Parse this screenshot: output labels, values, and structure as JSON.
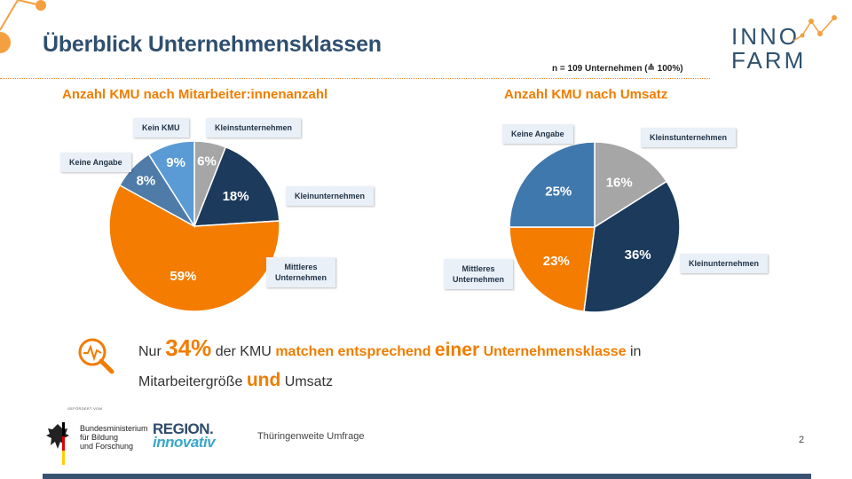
{
  "slide": {
    "title": "Überblick Unternehmensklassen",
    "sample_note": "n = 109 Unternehmen (≙ 100%)",
    "logo_line1": "INNO",
    "logo_line2": "FARM",
    "footer_survey": "Thüringenweite Umfrage",
    "page_number": "2",
    "funder_label": "GEFÖRDERT VOM",
    "funder_name_lines": [
      "Bundesministerium",
      "für Bildung",
      "und Forschung"
    ],
    "region_logo_line1": "REGION.",
    "region_logo_line2": "innovativ",
    "finding": {
      "w1": "Nur",
      "w2": "34%",
      "w3": "der KMU",
      "w4": "matchen entsprechend",
      "w5": "einer",
      "w6": "Unternehmensklasse",
      "w7": "in",
      "w8": "Mitarbeitergröße",
      "w9": "und",
      "w10": "Umsatz"
    }
  },
  "chart_data": [
    {
      "type": "pie",
      "title": "Anzahl KMU nach Mitarbeiter:innenanzahl",
      "slices": [
        {
          "label": "Kleinstunternehmen",
          "value": 6,
          "display": "6%",
          "color": "#a6a6a6"
        },
        {
          "label": "Kleinunternehmen",
          "value": 18,
          "display": "18%",
          "color": "#1b3a5c"
        },
        {
          "label": "Mittleres Unternehmen",
          "value": 59,
          "display": "59%",
          "color": "#f47c00"
        },
        {
          "label": "Keine Angabe",
          "value": 8,
          "display": "8%",
          "color": "#4f7ba8"
        },
        {
          "label": "Kein KMU",
          "value": 9,
          "display": "9%",
          "color": "#5b9bd5"
        }
      ]
    },
    {
      "type": "pie",
      "title": "Anzahl KMU nach Umsatz",
      "slices": [
        {
          "label": "Kleinstunternehmen",
          "value": 16,
          "display": "16%",
          "color": "#a6a6a6"
        },
        {
          "label": "Kleinunternehmen",
          "value": 36,
          "display": "36%",
          "color": "#1b3a5c"
        },
        {
          "label": "Mittleres Unternehmen",
          "value": 23,
          "display": "23%",
          "color": "#f47c00"
        },
        {
          "label": "Keine Angabe",
          "value": 25,
          "display": "25%",
          "color": "#3f78ad"
        }
      ]
    }
  ],
  "callouts": {
    "c1_kein_kmu": "Kein KMU",
    "c1_kleinst": "Kleinstunternehmen",
    "c1_keine_angabe": "Keine Angabe",
    "c1_klein": "Kleinunternehmen",
    "c1_mittleres_l1": "Mittleres",
    "c1_mittleres_l2": "Unternehmen",
    "c2_keine_angabe": "Keine Angabe",
    "c2_kleinst": "Kleinstunternehmen",
    "c2_klein": "Kleinunternehmen",
    "c2_mittleres_l1": "Mittleres",
    "c2_mittleres_l2": "Unternehmen"
  }
}
